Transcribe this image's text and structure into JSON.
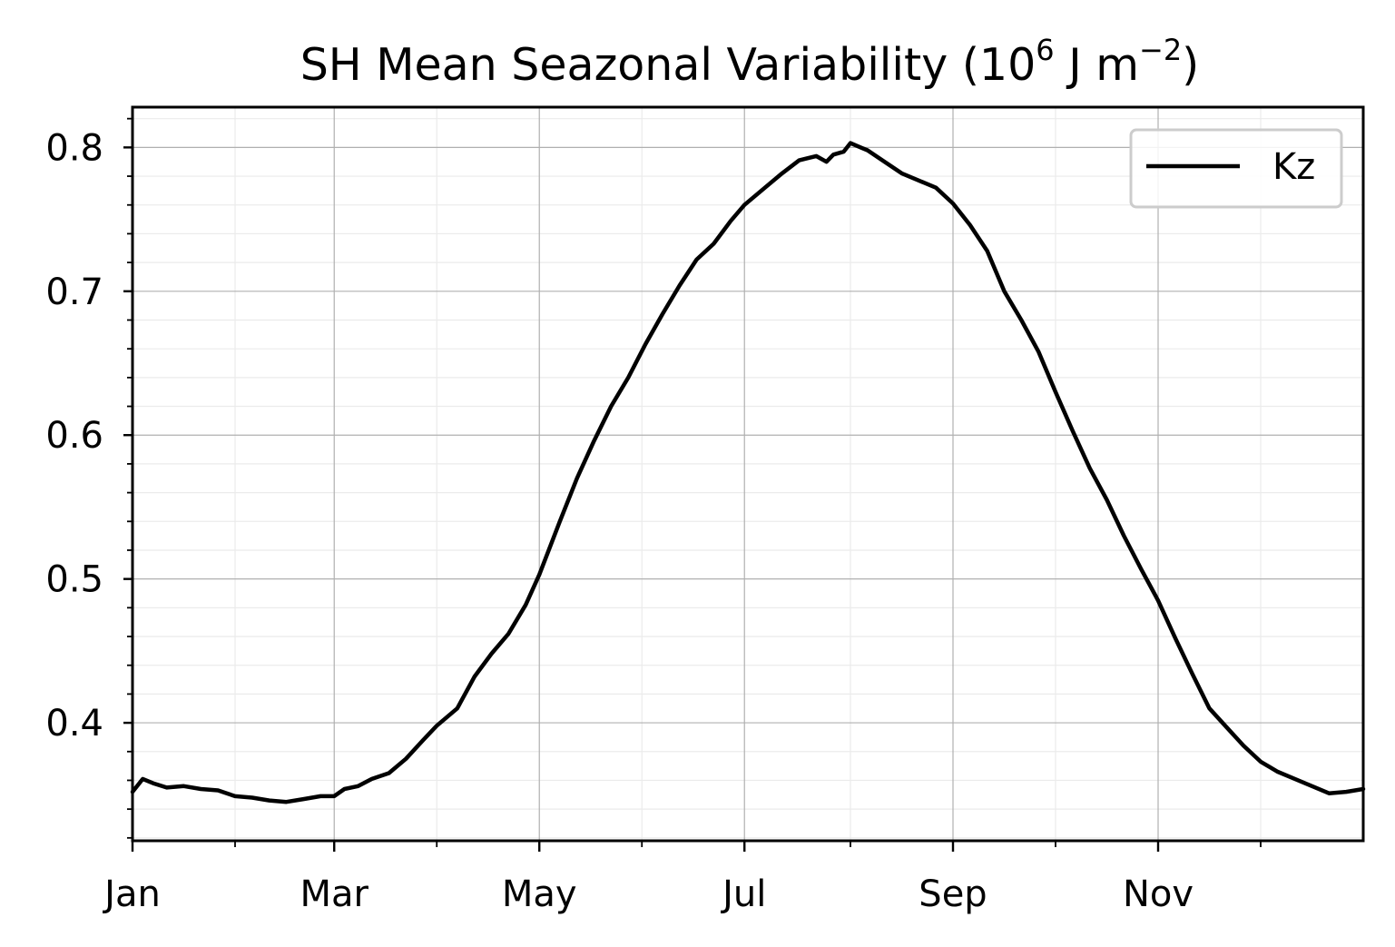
{
  "chart_data": {
    "type": "line",
    "title": "SH Mean Seazonal Variability (10",
    "title_superscript": "6",
    "title_units": " J m",
    "title_units_superscript": "−2",
    "title_close": ")",
    "xlabel": "",
    "ylabel": "",
    "x_tick_labels": [
      "Jan",
      "Mar",
      "May",
      "Jul",
      "Sep",
      "Nov"
    ],
    "x_tick_days": [
      0,
      59,
      119,
      179,
      240,
      300
    ],
    "x_minor_tick_days": [
      30,
      89,
      149,
      210,
      270,
      330
    ],
    "y_tick_labels": [
      "0.4",
      "0.5",
      "0.6",
      "0.7",
      "0.8"
    ],
    "y_ticks": [
      0.4,
      0.5,
      0.6,
      0.7,
      0.8
    ],
    "xlim": [
      0,
      360
    ],
    "ylim": [
      0.318,
      0.828
    ],
    "grid": true,
    "legend_position": "upper right",
    "series": [
      {
        "name": "Kz",
        "color": "#000000",
        "x": [
          0,
          3,
          6,
          10,
          15,
          20,
          25,
          30,
          35,
          40,
          45,
          50,
          55,
          59,
          62,
          66,
          70,
          75,
          80,
          85,
          89,
          95,
          100,
          105,
          110,
          115,
          119,
          125,
          130,
          135,
          140,
          145,
          150,
          155,
          160,
          165,
          170,
          175,
          179,
          185,
          190,
          195,
          200,
          203,
          205,
          208,
          210,
          213,
          215,
          220,
          225,
          230,
          235,
          240,
          245,
          250,
          255,
          260,
          265,
          270,
          275,
          280,
          285,
          290,
          295,
          300,
          305,
          310,
          315,
          320,
          325,
          330,
          335,
          340,
          345,
          350,
          355,
          360
        ],
        "y": [
          0.352,
          0.361,
          0.358,
          0.355,
          0.356,
          0.354,
          0.353,
          0.349,
          0.348,
          0.346,
          0.345,
          0.347,
          0.349,
          0.349,
          0.354,
          0.356,
          0.361,
          0.365,
          0.375,
          0.388,
          0.398,
          0.41,
          0.432,
          0.448,
          0.462,
          0.482,
          0.503,
          0.54,
          0.57,
          0.596,
          0.62,
          0.64,
          0.663,
          0.684,
          0.704,
          0.722,
          0.733,
          0.749,
          0.76,
          0.772,
          0.782,
          0.791,
          0.794,
          0.79,
          0.795,
          0.797,
          0.803,
          0.8,
          0.798,
          0.79,
          0.782,
          0.777,
          0.772,
          0.761,
          0.746,
          0.728,
          0.7,
          0.68,
          0.658,
          0.63,
          0.603,
          0.577,
          0.555,
          0.53,
          0.507,
          0.485,
          0.459,
          0.434,
          0.41,
          0.397,
          0.384,
          0.373,
          0.366,
          0.361,
          0.356,
          0.351,
          0.352,
          0.354
        ]
      }
    ]
  }
}
